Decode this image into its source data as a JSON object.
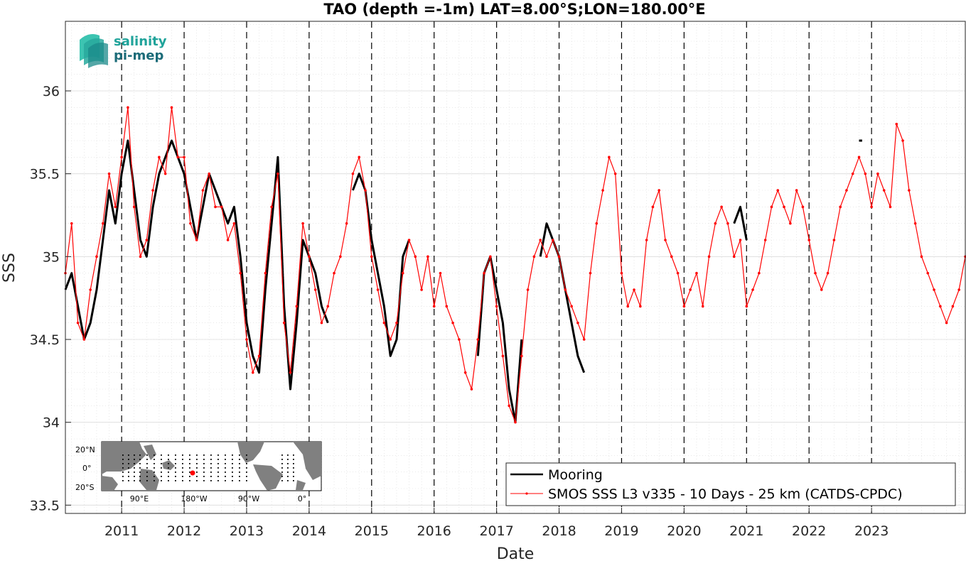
{
  "chart_data": {
    "type": "line",
    "title": "TAO (depth =-1m) LAT=8.00°S;LON=180.00°E",
    "xlabel": "Date",
    "ylabel": "SSS",
    "xlim": [
      2010.1,
      2024.5
    ],
    "ylim": [
      33.45,
      36.42
    ],
    "yticks": [
      33.5,
      34,
      34.5,
      35,
      35.5,
      36
    ],
    "yticklabels": [
      "33.5",
      "34",
      "34.5",
      "35",
      "35.5",
      "36"
    ],
    "xticks": [
      2011,
      2012,
      2013,
      2014,
      2015,
      2016,
      2017,
      2018,
      2019,
      2020,
      2021,
      2022,
      2023
    ],
    "xticklabels": [
      "2011",
      "2012",
      "2013",
      "2014",
      "2015",
      "2016",
      "2017",
      "2018",
      "2019",
      "2020",
      "2021",
      "2022",
      "2023"
    ],
    "year_dividers": [
      2011,
      2012,
      2013,
      2014,
      2015,
      2016,
      2017,
      2018,
      2019,
      2020,
      2021,
      2022,
      2023
    ],
    "grid": true,
    "legend_position": "bottom-right",
    "series": [
      {
        "name": "Mooring",
        "color": "#000000",
        "style": "thick-line",
        "x": [
          2010.1,
          2010.2,
          2010.3,
          2010.4,
          2010.5,
          2010.6,
          2010.7,
          2010.8,
          2010.9,
          2011.0,
          2011.1,
          2011.2,
          2011.3,
          2011.4,
          2011.5,
          2011.6,
          2011.7,
          2011.8,
          2011.9,
          2012.0,
          2012.1,
          2012.2,
          2012.3,
          2012.4,
          2012.5,
          2012.6,
          2012.7,
          2012.8,
          2012.9,
          2013.0,
          2013.1,
          2013.2,
          2013.3,
          2013.4,
          2013.5,
          2013.6,
          2013.7,
          2013.8,
          2013.9,
          2014.0,
          2014.1,
          2014.2,
          2014.3,
          null,
          2014.7,
          2014.8,
          2014.9,
          2015.0,
          2015.1,
          2015.2,
          2015.3,
          2015.4,
          2015.5,
          2015.6,
          null,
          2016.7,
          2016.8,
          2016.9,
          2017.0,
          2017.1,
          2017.2,
          2017.3,
          2017.4,
          null,
          2017.7,
          2017.8,
          2017.9,
          2018.0,
          2018.1,
          2018.2,
          2018.3,
          2018.4,
          null,
          2020.8,
          2020.9,
          2021.0,
          null,
          2022.8,
          2022.85
        ],
        "y": [
          34.8,
          34.9,
          34.7,
          34.5,
          34.6,
          34.8,
          35.1,
          35.4,
          35.2,
          35.5,
          35.7,
          35.4,
          35.1,
          35.0,
          35.3,
          35.5,
          35.6,
          35.7,
          35.6,
          35.5,
          35.3,
          35.1,
          35.3,
          35.5,
          35.4,
          35.3,
          35.2,
          35.3,
          35.0,
          34.6,
          34.4,
          34.3,
          34.8,
          35.2,
          35.6,
          34.7,
          34.2,
          34.6,
          35.1,
          35.0,
          34.9,
          34.7,
          34.6,
          null,
          35.4,
          35.5,
          35.4,
          35.1,
          34.9,
          34.7,
          34.4,
          34.5,
          35.0,
          35.1,
          null,
          34.4,
          34.9,
          35.0,
          34.8,
          34.6,
          34.2,
          34.0,
          34.5,
          null,
          35.0,
          35.2,
          35.1,
          35.0,
          34.8,
          34.6,
          34.4,
          34.3,
          null,
          35.2,
          35.3,
          35.1,
          null,
          35.7,
          35.7
        ]
      },
      {
        "name": "SMOS SSS L3 v335 - 10 Days - 25 km (CATDS-CPDC)",
        "color": "#ff0000",
        "style": "thin-line-with-dots",
        "x": [
          2010.1,
          2010.2,
          2010.3,
          2010.4,
          2010.5,
          2010.6,
          2010.7,
          2010.8,
          2010.9,
          2011.0,
          2011.1,
          2011.2,
          2011.3,
          2011.4,
          2011.5,
          2011.6,
          2011.7,
          2011.8,
          2011.9,
          2012.0,
          2012.1,
          2012.2,
          2012.3,
          2012.4,
          2012.5,
          2012.6,
          2012.7,
          2012.8,
          2012.9,
          2013.0,
          2013.1,
          2013.2,
          2013.3,
          2013.4,
          2013.5,
          2013.6,
          2013.7,
          2013.8,
          2013.9,
          2014.0,
          2014.1,
          2014.2,
          2014.3,
          2014.4,
          2014.5,
          2014.6,
          2014.7,
          2014.8,
          2014.9,
          2015.0,
          2015.1,
          2015.2,
          2015.3,
          2015.4,
          2015.5,
          2015.6,
          2015.7,
          2015.8,
          2015.9,
          2016.0,
          2016.1,
          2016.2,
          2016.3,
          2016.4,
          2016.5,
          2016.6,
          2016.7,
          2016.8,
          2016.9,
          2017.0,
          2017.1,
          2017.2,
          2017.3,
          2017.4,
          2017.5,
          2017.6,
          2017.7,
          2017.8,
          2017.9,
          2018.0,
          2018.1,
          2018.2,
          2018.3,
          2018.4,
          2018.5,
          2018.6,
          2018.7,
          2018.8,
          2018.9,
          2019.0,
          2019.1,
          2019.2,
          2019.3,
          2019.4,
          2019.5,
          2019.6,
          2019.7,
          2019.8,
          2019.9,
          2020.0,
          2020.1,
          2020.2,
          2020.3,
          2020.4,
          2020.5,
          2020.6,
          2020.7,
          2020.8,
          2020.9,
          2021.0,
          2021.1,
          2021.2,
          2021.3,
          2021.4,
          2021.5,
          2021.6,
          2021.7,
          2021.8,
          2021.9,
          2022.0,
          2022.1,
          2022.2,
          2022.3,
          2022.4,
          2022.5,
          2022.6,
          2022.7,
          2022.8,
          2022.9,
          2023.0,
          2023.1,
          2023.2,
          2023.3,
          2023.4,
          2023.5,
          2023.6,
          2023.7,
          2023.8,
          2023.9,
          2024.0,
          2024.1,
          2024.2,
          2024.3,
          2024.4,
          2024.5
        ],
        "y": [
          34.9,
          35.2,
          34.6,
          34.5,
          34.8,
          35.0,
          35.2,
          35.5,
          35.3,
          35.6,
          35.9,
          35.3,
          35.0,
          35.1,
          35.4,
          35.6,
          35.5,
          35.9,
          35.6,
          35.6,
          35.2,
          35.1,
          35.4,
          35.5,
          35.3,
          35.3,
          35.1,
          35.2,
          34.9,
          34.5,
          34.3,
          34.4,
          34.9,
          35.3,
          35.5,
          34.6,
          34.3,
          34.7,
          35.2,
          35.0,
          34.8,
          34.6,
          34.7,
          34.9,
          35.0,
          35.2,
          35.5,
          35.6,
          35.4,
          35.0,
          34.8,
          34.6,
          34.5,
          34.6,
          34.9,
          35.1,
          35.0,
          34.8,
          35.0,
          34.7,
          34.9,
          34.7,
          34.6,
          34.5,
          34.3,
          34.2,
          34.5,
          34.9,
          35.0,
          34.7,
          34.4,
          34.1,
          34.0,
          34.4,
          34.8,
          35.0,
          35.1,
          35.0,
          35.1,
          35.0,
          34.8,
          34.7,
          34.6,
          34.5,
          34.9,
          35.2,
          35.4,
          35.6,
          35.5,
          34.9,
          34.7,
          34.8,
          34.7,
          35.1,
          35.3,
          35.4,
          35.1,
          35.0,
          34.9,
          34.7,
          34.8,
          34.9,
          34.7,
          35.0,
          35.2,
          35.3,
          35.2,
          35.0,
          35.1,
          34.7,
          34.8,
          34.9,
          35.1,
          35.3,
          35.4,
          35.3,
          35.2,
          35.4,
          35.3,
          35.1,
          34.9,
          34.8,
          34.9,
          35.1,
          35.3,
          35.4,
          35.5,
          35.6,
          35.5,
          35.3,
          35.5,
          35.4,
          35.3,
          35.8,
          35.7,
          35.4,
          35.2,
          35.0,
          34.9,
          34.8,
          34.7,
          34.6,
          34.7,
          34.8,
          35.0
        ]
      }
    ],
    "inset_map": {
      "lat_ticks": [
        "20°N",
        "0°",
        "20°S"
      ],
      "lon_ticks": [
        "90°E",
        "180°W",
        "90°W",
        "0°"
      ],
      "colors": {
        "land": "#808080",
        "ocean": "#ffffff",
        "marker": "#ff0000",
        "moorings": "#000000"
      }
    }
  },
  "logo": {
    "line1": "salinity",
    "line2": "pi-mep"
  }
}
